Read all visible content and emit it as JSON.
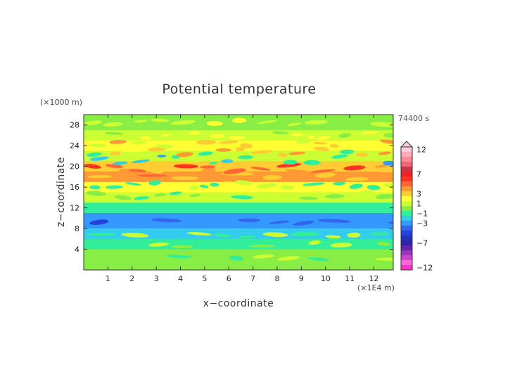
{
  "chart_data": {
    "type": "heatmap",
    "title": "Potential temperature",
    "xlabel": "x−coordinate",
    "ylabel": "z−coordinate",
    "x_unit": "(×1E4 m)",
    "y_unit": "(×1000 m)",
    "time_label": "74400 s",
    "xlim": [
      0,
      12.8
    ],
    "ylim": [
      0,
      30
    ],
    "x_ticks": [
      "1",
      "2",
      "3",
      "4",
      "5",
      "6",
      "7",
      "8",
      "9",
      "10",
      "11",
      "12"
    ],
    "y_ticks": [
      "4",
      "8",
      "12",
      "16",
      "20",
      "24",
      "28"
    ],
    "colorbar": {
      "levels": [
        -12,
        -11,
        -10,
        -9,
        -8,
        -7,
        -6,
        -5,
        -4,
        -3,
        -2,
        -1,
        0,
        1,
        2,
        3,
        4,
        5,
        6,
        7,
        8,
        9,
        10,
        11,
        12
      ],
      "labels": [
        "12",
        "7",
        "3",
        "1",
        "−1",
        "−3",
        "−7",
        "−12"
      ],
      "colors": {
        "-12": "#ff33cc",
        "-11": "#ff66dd",
        "-10": "#cc44cc",
        "-9": "#9933bb",
        "-8": "#6622aa",
        "-7": "#3322aa",
        "-6": "#2233bb",
        "-5": "#2244dd",
        "-4": "#3366ee",
        "-3": "#3399ff",
        "-2": "#33ccee",
        "-1": "#33ee99",
        "0": "#88ee44",
        "1": "#ccff33",
        "2": "#ffff33",
        "3": "#ffcc33",
        "4": "#ff9933",
        "5": "#ff6633",
        "6": "#ff3322",
        "7": "#ee2222",
        "8": "#cc3344",
        "9": "#ee6677",
        "10": "#ff8899",
        "11": "#ffaabb",
        "12": "#ffccdd"
      }
    },
    "z_profile_bands": [
      {
        "z": [
          0,
          2
        ],
        "value": 0
      },
      {
        "z": [
          2,
          4
        ],
        "value": 0
      },
      {
        "z": [
          4,
          6
        ],
        "value": -1
      },
      {
        "z": [
          6,
          8
        ],
        "value": -2
      },
      {
        "z": [
          8,
          11
        ],
        "value": -3
      },
      {
        "z": [
          11,
          13
        ],
        "value": -1
      },
      {
        "z": [
          13,
          15
        ],
        "value": 1
      },
      {
        "z": [
          15,
          17
        ],
        "value": 2
      },
      {
        "z": [
          17,
          19
        ],
        "value": 4
      },
      {
        "z": [
          19,
          21
        ],
        "value": 3
      },
      {
        "z": [
          21,
          23
        ],
        "value": 1
      },
      {
        "z": [
          23,
          25
        ],
        "value": 2
      },
      {
        "z": [
          25,
          27
        ],
        "value": 1
      },
      {
        "z": [
          27,
          30
        ],
        "value": 0
      }
    ],
    "grid": false
  }
}
